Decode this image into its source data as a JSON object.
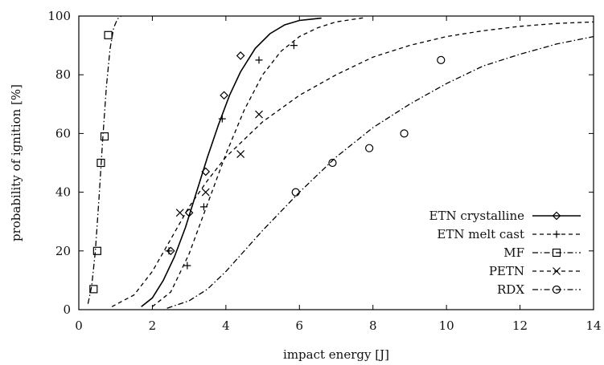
{
  "chart_data": {
    "type": "scatter",
    "xlabel": "impact energy [J]",
    "ylabel": "probability of ignition [%]",
    "xlim": [
      0,
      14
    ],
    "ylim": [
      0,
      100
    ],
    "xticks": [
      0,
      2,
      4,
      6,
      8,
      10,
      12,
      14
    ],
    "yticks": [
      0,
      20,
      40,
      60,
      80,
      100
    ],
    "grid": false,
    "legend_position": "bottom-right",
    "series": [
      {
        "name": "ETN crystalline",
        "marker": "diamond",
        "line_style": "solid",
        "points": [
          {
            "x": 2.5,
            "y": 20
          },
          {
            "x": 3.0,
            "y": 33
          },
          {
            "x": 3.45,
            "y": 47
          },
          {
            "x": 3.95,
            "y": 73
          },
          {
            "x": 4.4,
            "y": 86.5
          }
        ],
        "fit_curve": [
          {
            "x": 1.7,
            "y": 1
          },
          {
            "x": 2.0,
            "y": 4
          },
          {
            "x": 2.3,
            "y": 10
          },
          {
            "x": 2.6,
            "y": 18
          },
          {
            "x": 2.9,
            "y": 28
          },
          {
            "x": 3.2,
            "y": 40
          },
          {
            "x": 3.5,
            "y": 52
          },
          {
            "x": 3.8,
            "y": 63
          },
          {
            "x": 4.1,
            "y": 73
          },
          {
            "x": 4.4,
            "y": 81
          },
          {
            "x": 4.8,
            "y": 89
          },
          {
            "x": 5.2,
            "y": 94
          },
          {
            "x": 5.6,
            "y": 97
          },
          {
            "x": 6.0,
            "y": 98.5
          },
          {
            "x": 6.6,
            "y": 99.3
          }
        ]
      },
      {
        "name": "ETN melt cast",
        "marker": "plus",
        "line_style": "dashed",
        "points": [
          {
            "x": 2.45,
            "y": 20
          },
          {
            "x": 2.95,
            "y": 15
          },
          {
            "x": 3.4,
            "y": 35
          },
          {
            "x": 3.9,
            "y": 65
          },
          {
            "x": 4.9,
            "y": 85
          },
          {
            "x": 5.85,
            "y": 90
          }
        ],
        "fit_curve": [
          {
            "x": 2.0,
            "y": 1
          },
          {
            "x": 2.5,
            "y": 6
          },
          {
            "x": 3.0,
            "y": 19
          },
          {
            "x": 3.5,
            "y": 36
          },
          {
            "x": 4.0,
            "y": 53
          },
          {
            "x": 4.5,
            "y": 68
          },
          {
            "x": 5.0,
            "y": 80
          },
          {
            "x": 5.5,
            "y": 88
          },
          {
            "x": 6.0,
            "y": 93
          },
          {
            "x": 6.5,
            "y": 96
          },
          {
            "x": 7.0,
            "y": 98
          },
          {
            "x": 7.8,
            "y": 99.5
          }
        ]
      },
      {
        "name": "MF",
        "marker": "square",
        "line_style": "dash-dot",
        "points": [
          {
            "x": 0.4,
            "y": 7
          },
          {
            "x": 0.5,
            "y": 20
          },
          {
            "x": 0.6,
            "y": 50
          },
          {
            "x": 0.7,
            "y": 59
          },
          {
            "x": 0.8,
            "y": 93.5
          }
        ],
        "fit_curve": [
          {
            "x": 0.25,
            "y": 2
          },
          {
            "x": 0.35,
            "y": 8
          },
          {
            "x": 0.45,
            "y": 20
          },
          {
            "x": 0.55,
            "y": 38
          },
          {
            "x": 0.65,
            "y": 58
          },
          {
            "x": 0.75,
            "y": 76
          },
          {
            "x": 0.85,
            "y": 89
          },
          {
            "x": 0.95,
            "y": 96
          },
          {
            "x": 1.05,
            "y": 99
          },
          {
            "x": 1.15,
            "y": 100
          }
        ]
      },
      {
        "name": "PETN",
        "marker": "cross",
        "line_style": "dashed",
        "points": [
          {
            "x": 2.75,
            "y": 33
          },
          {
            "x": 3.45,
            "y": 40
          },
          {
            "x": 4.4,
            "y": 53
          },
          {
            "x": 4.9,
            "y": 66.5
          }
        ],
        "fit_curve": [
          {
            "x": 0.9,
            "y": 1
          },
          {
            "x": 1.5,
            "y": 5
          },
          {
            "x": 2.0,
            "y": 13
          },
          {
            "x": 2.5,
            "y": 24
          },
          {
            "x": 3.0,
            "y": 35
          },
          {
            "x": 3.5,
            "y": 44
          },
          {
            "x": 4.0,
            "y": 52
          },
          {
            "x": 5.0,
            "y": 64
          },
          {
            "x": 6.0,
            "y": 73
          },
          {
            "x": 7.0,
            "y": 80
          },
          {
            "x": 8.0,
            "y": 86
          },
          {
            "x": 9.0,
            "y": 90
          },
          {
            "x": 10.0,
            "y": 93
          },
          {
            "x": 11.0,
            "y": 95
          },
          {
            "x": 12.0,
            "y": 96.5
          },
          {
            "x": 13.0,
            "y": 97.5
          },
          {
            "x": 14.0,
            "y": 98
          }
        ]
      },
      {
        "name": "RDX",
        "marker": "circle",
        "line_style": "dash-dot",
        "points": [
          {
            "x": 5.9,
            "y": 40
          },
          {
            "x": 6.9,
            "y": 50
          },
          {
            "x": 7.9,
            "y": 55
          },
          {
            "x": 8.85,
            "y": 60
          },
          {
            "x": 9.85,
            "y": 85
          }
        ],
        "fit_curve": [
          {
            "x": 2.4,
            "y": 0.5
          },
          {
            "x": 3.0,
            "y": 3
          },
          {
            "x": 3.5,
            "y": 7
          },
          {
            "x": 4.0,
            "y": 13
          },
          {
            "x": 5.0,
            "y": 27
          },
          {
            "x": 6.0,
            "y": 40
          },
          {
            "x": 7.0,
            "y": 52
          },
          {
            "x": 8.0,
            "y": 62
          },
          {
            "x": 9.0,
            "y": 70
          },
          {
            "x": 10.0,
            "y": 77
          },
          {
            "x": 11.0,
            "y": 83
          },
          {
            "x": 12.0,
            "y": 87
          },
          {
            "x": 13.0,
            "y": 90.5
          },
          {
            "x": 14.0,
            "y": 93
          }
        ]
      }
    ]
  }
}
